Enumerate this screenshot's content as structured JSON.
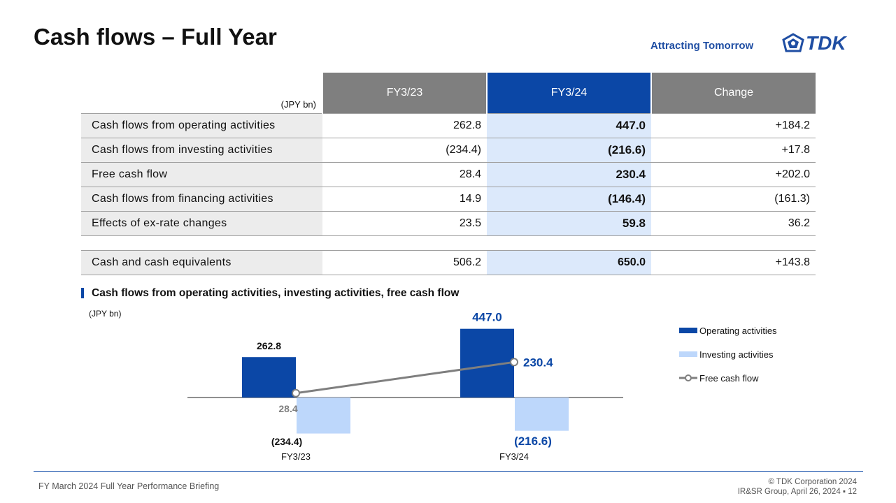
{
  "header": {
    "title": "Cash flows – Full Year",
    "tagline": "Attracting Tomorrow",
    "logo_text": "TDK",
    "logo_icon": "tdk-logo-icon"
  },
  "table": {
    "unit": "(JPY bn)",
    "columns": [
      "FY3/23",
      "FY3/24",
      "Change"
    ],
    "rows": [
      {
        "label": "Cash flows from operating activities",
        "fy23": "262.8",
        "fy24": "447.0",
        "change": "+184.2"
      },
      {
        "label": "Cash flows from investing activities",
        "fy23": "(234.4)",
        "fy24": "(216.6)",
        "change": "+17.8"
      },
      {
        "label": "Free cash flow",
        "fy23": "28.4",
        "fy24": "230.4",
        "change": "+202.0"
      },
      {
        "label": "Cash flows from financing activities",
        "fy23": "14.9",
        "fy24": "(146.4)",
        "change": "(161.3)"
      },
      {
        "label": "Effects of ex-rate changes",
        "fy23": "23.5",
        "fy24": "59.8",
        "change": "36.2"
      }
    ],
    "total": {
      "label": "Cash and cash equivalents",
      "fy23": "506.2",
      "fy24": "650.0",
      "change": "+143.8"
    }
  },
  "section": {
    "title": "Cash flows from operating activities, investing activities, free cash flow",
    "unit": "(JPY bn)"
  },
  "chart_data": {
    "type": "bar",
    "categories": [
      "FY3/23",
      "FY3/24"
    ],
    "series": [
      {
        "name": "Operating activities",
        "type": "bar",
        "values": [
          262.8,
          447.0
        ],
        "labels": [
          "262.8",
          "447.0"
        ],
        "color": "#0b47a6"
      },
      {
        "name": "Investing activities",
        "type": "bar",
        "values": [
          -234.4,
          -216.6
        ],
        "labels": [
          "(234.4)",
          "(216.6)"
        ],
        "color": "#bdd7fb"
      },
      {
        "name": "Free cash flow",
        "type": "line",
        "values": [
          28.4,
          230.4
        ],
        "labels": [
          "28.4",
          "230.4"
        ],
        "color": "#7f7f7f"
      }
    ],
    "legend": "right",
    "grid": false
  },
  "footer": {
    "left": "FY March 2024 Full Year Performance Briefing",
    "right_line1": "© TDK Corporation 2024",
    "right_line2": "IR&SR Group, April 26, 2024 ▪ 12"
  }
}
